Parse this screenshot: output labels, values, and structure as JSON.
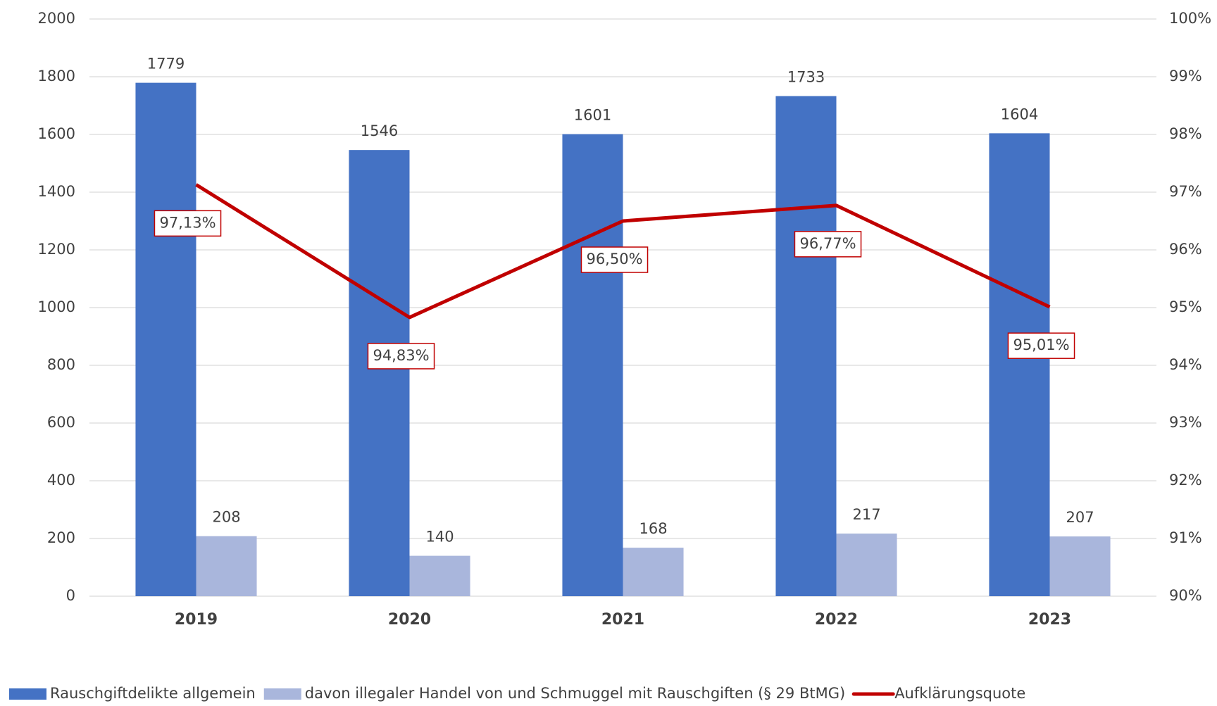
{
  "chart_data": {
    "type": "bar",
    "categories": [
      "2019",
      "2020",
      "2021",
      "2022",
      "2023"
    ],
    "series": [
      {
        "name": "Rauschgiftdelikte allgemein",
        "color": "#4472c4",
        "values": [
          1779,
          1546,
          1601,
          1733,
          1604
        ]
      },
      {
        "name": "davon illegaler Handel von und Schmuggel mit Rauschgiften (§ 29 BtMG)",
        "color": "#a9b6dc",
        "values": [
          208,
          140,
          168,
          217,
          207
        ]
      },
      {
        "name": "Aufklärungsquote",
        "type": "line",
        "axis": "y2",
        "color": "#c00000",
        "values": [
          97.13,
          94.83,
          96.5,
          96.77,
          95.01
        ],
        "value_labels": [
          "97,13%",
          "94,83%",
          "96,50%",
          "96,77%",
          "95,01%"
        ]
      }
    ],
    "ylim": [
      0,
      2000
    ],
    "yticks": [
      0,
      200,
      400,
      600,
      800,
      1000,
      1200,
      1400,
      1600,
      1800,
      2000
    ],
    "y2lim": [
      90,
      100
    ],
    "y2ticks": [
      {
        "value": 90,
        "label": "90%"
      },
      {
        "value": 91,
        "label": "91%"
      },
      {
        "value": 92,
        "label": "92%"
      },
      {
        "value": 93,
        "label": "93%"
      },
      {
        "value": 94,
        "label": "94%"
      },
      {
        "value": 95,
        "label": "95%"
      },
      {
        "value": 96,
        "label": "96%"
      },
      {
        "value": 97,
        "label": "97%"
      },
      {
        "value": 98,
        "label": "98%"
      },
      {
        "value": 99,
        "label": "99%"
      },
      {
        "value": 100,
        "label": "100%"
      }
    ],
    "grid": true,
    "legend": "bottom"
  }
}
